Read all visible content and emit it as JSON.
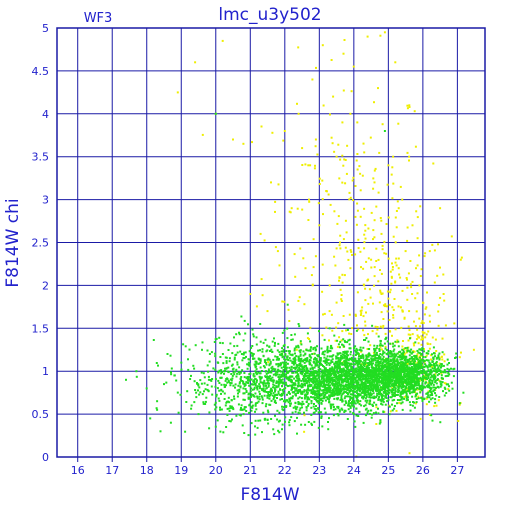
{
  "chart_data": {
    "type": "scatter",
    "title": "lmc_u3y502",
    "corner_label": "WF3",
    "xlabel": "F814W",
    "ylabel": "F814W  chi",
    "xlim": [
      15.4,
      27.8
    ],
    "ylim": [
      0,
      5
    ],
    "xticks": [
      "16",
      "17",
      "18",
      "19",
      "20",
      "21",
      "22",
      "23",
      "24",
      "25",
      "26",
      "27"
    ],
    "yticks": [
      "0",
      "0.5",
      "1",
      "1.5",
      "2",
      "2.5",
      "3",
      "3.5",
      "4",
      "4.5",
      "5"
    ],
    "grid": true,
    "colors": {
      "axis": "#1a1aa6",
      "grid": "#1a1aa6",
      "text": "#2222cc",
      "green": "#22dd22",
      "yellow": "#eeee00"
    },
    "series": [
      {
        "color_key": "yellow",
        "points": [
          [
            18.9,
            4.25
          ],
          [
            19.4,
            4.6
          ],
          [
            20.0,
            4.0
          ],
          [
            20.2,
            4.85
          ],
          [
            20.5,
            3.7
          ],
          [
            20.8,
            3.65
          ],
          [
            21.3,
            2.6
          ],
          [
            21.6,
            3.2
          ],
          [
            21.8,
            2.4
          ],
          [
            22.0,
            3.8
          ],
          [
            22.2,
            2.9
          ],
          [
            22.4,
            4.0
          ],
          [
            22.5,
            3.6
          ],
          [
            22.6,
            2.2
          ],
          [
            22.7,
            3.0
          ],
          [
            22.8,
            4.4
          ],
          [
            22.9,
            3.7
          ],
          [
            23.0,
            2.7
          ],
          [
            23.1,
            4.8
          ],
          [
            23.2,
            3.1
          ],
          [
            23.3,
            2.0
          ],
          [
            23.4,
            4.2
          ],
          [
            23.5,
            3.5
          ],
          [
            23.6,
            2.5
          ],
          [
            23.7,
            4.7
          ],
          [
            23.8,
            3.3
          ],
          [
            23.9,
            2.2
          ],
          [
            24.0,
            4.55
          ],
          [
            24.1,
            3.9
          ],
          [
            24.2,
            2.8
          ],
          [
            24.3,
            3.55
          ],
          [
            24.4,
            4.9
          ],
          [
            24.5,
            2.3
          ],
          [
            24.6,
            3.2
          ],
          [
            24.7,
            4.3
          ],
          [
            24.8,
            2.6
          ],
          [
            24.9,
            4.95
          ],
          [
            25.0,
            3.4
          ],
          [
            25.1,
            2.1
          ],
          [
            25.2,
            4.6
          ],
          [
            25.3,
            2.9
          ],
          [
            25.4,
            3.0
          ],
          [
            25.5,
            2.4
          ],
          [
            25.6,
            3.5
          ],
          [
            25.7,
            2.7
          ],
          [
            25.8,
            2.2
          ],
          [
            25.9,
            2.0
          ],
          [
            26.0,
            1.8
          ],
          [
            26.2,
            2.4
          ],
          [
            26.5,
            2.9
          ],
          [
            26.6,
            1.9
          ],
          [
            27.1,
            2.3
          ],
          [
            22.3,
            2.1
          ],
          [
            23.5,
            1.8
          ],
          [
            24.3,
            2.0
          ],
          [
            24.8,
            1.9
          ],
          [
            25.3,
            2.2
          ],
          [
            25.6,
            1.7
          ],
          [
            21.0,
            1.9
          ],
          [
            21.5,
            1.7
          ]
        ],
        "clouds": [
          {
            "cx": 23.8,
            "cy": 2.6,
            "sx": 1.2,
            "sy": 1.0,
            "n": 230
          },
          {
            "cx": 25.0,
            "cy": 1.7,
            "sx": 0.9,
            "sy": 0.5,
            "n": 200
          },
          {
            "cx": 25.9,
            "cy": 1.05,
            "sx": 0.5,
            "sy": 0.25,
            "n": 160
          }
        ]
      },
      {
        "color_key": "green",
        "points": [
          [
            17.4,
            0.9
          ],
          [
            17.7,
            1.0
          ],
          [
            18.0,
            0.8
          ],
          [
            18.1,
            0.45
          ],
          [
            18.3,
            0.65
          ],
          [
            18.4,
            0.3
          ],
          [
            18.5,
            0.85
          ],
          [
            18.6,
            1.2
          ],
          [
            18.7,
            0.4
          ],
          [
            18.9,
            0.75
          ],
          [
            19.0,
            1.1
          ],
          [
            19.3,
            0.6
          ],
          [
            19.5,
            0.5
          ],
          [
            19.8,
            0.9
          ],
          [
            20.0,
            4.0
          ],
          [
            24.9,
            3.8
          ],
          [
            22.4,
            1.55
          ],
          [
            23.3,
            1.5
          ],
          [
            18.3,
            0.55
          ],
          [
            18.8,
            0.95
          ],
          [
            19.6,
            1.25
          ],
          [
            20.3,
            0.35
          ]
        ],
        "clouds": [
          {
            "cx": 22.6,
            "cy": 0.9,
            "sx": 1.3,
            "sy": 0.22,
            "n": 1300
          },
          {
            "cx": 24.2,
            "cy": 0.92,
            "sx": 0.9,
            "sy": 0.17,
            "n": 1700
          },
          {
            "cx": 25.6,
            "cy": 0.98,
            "sx": 0.55,
            "sy": 0.13,
            "n": 900
          },
          {
            "cx": 21.0,
            "cy": 0.85,
            "sx": 0.9,
            "sy": 0.28,
            "n": 350
          }
        ]
      }
    ]
  }
}
